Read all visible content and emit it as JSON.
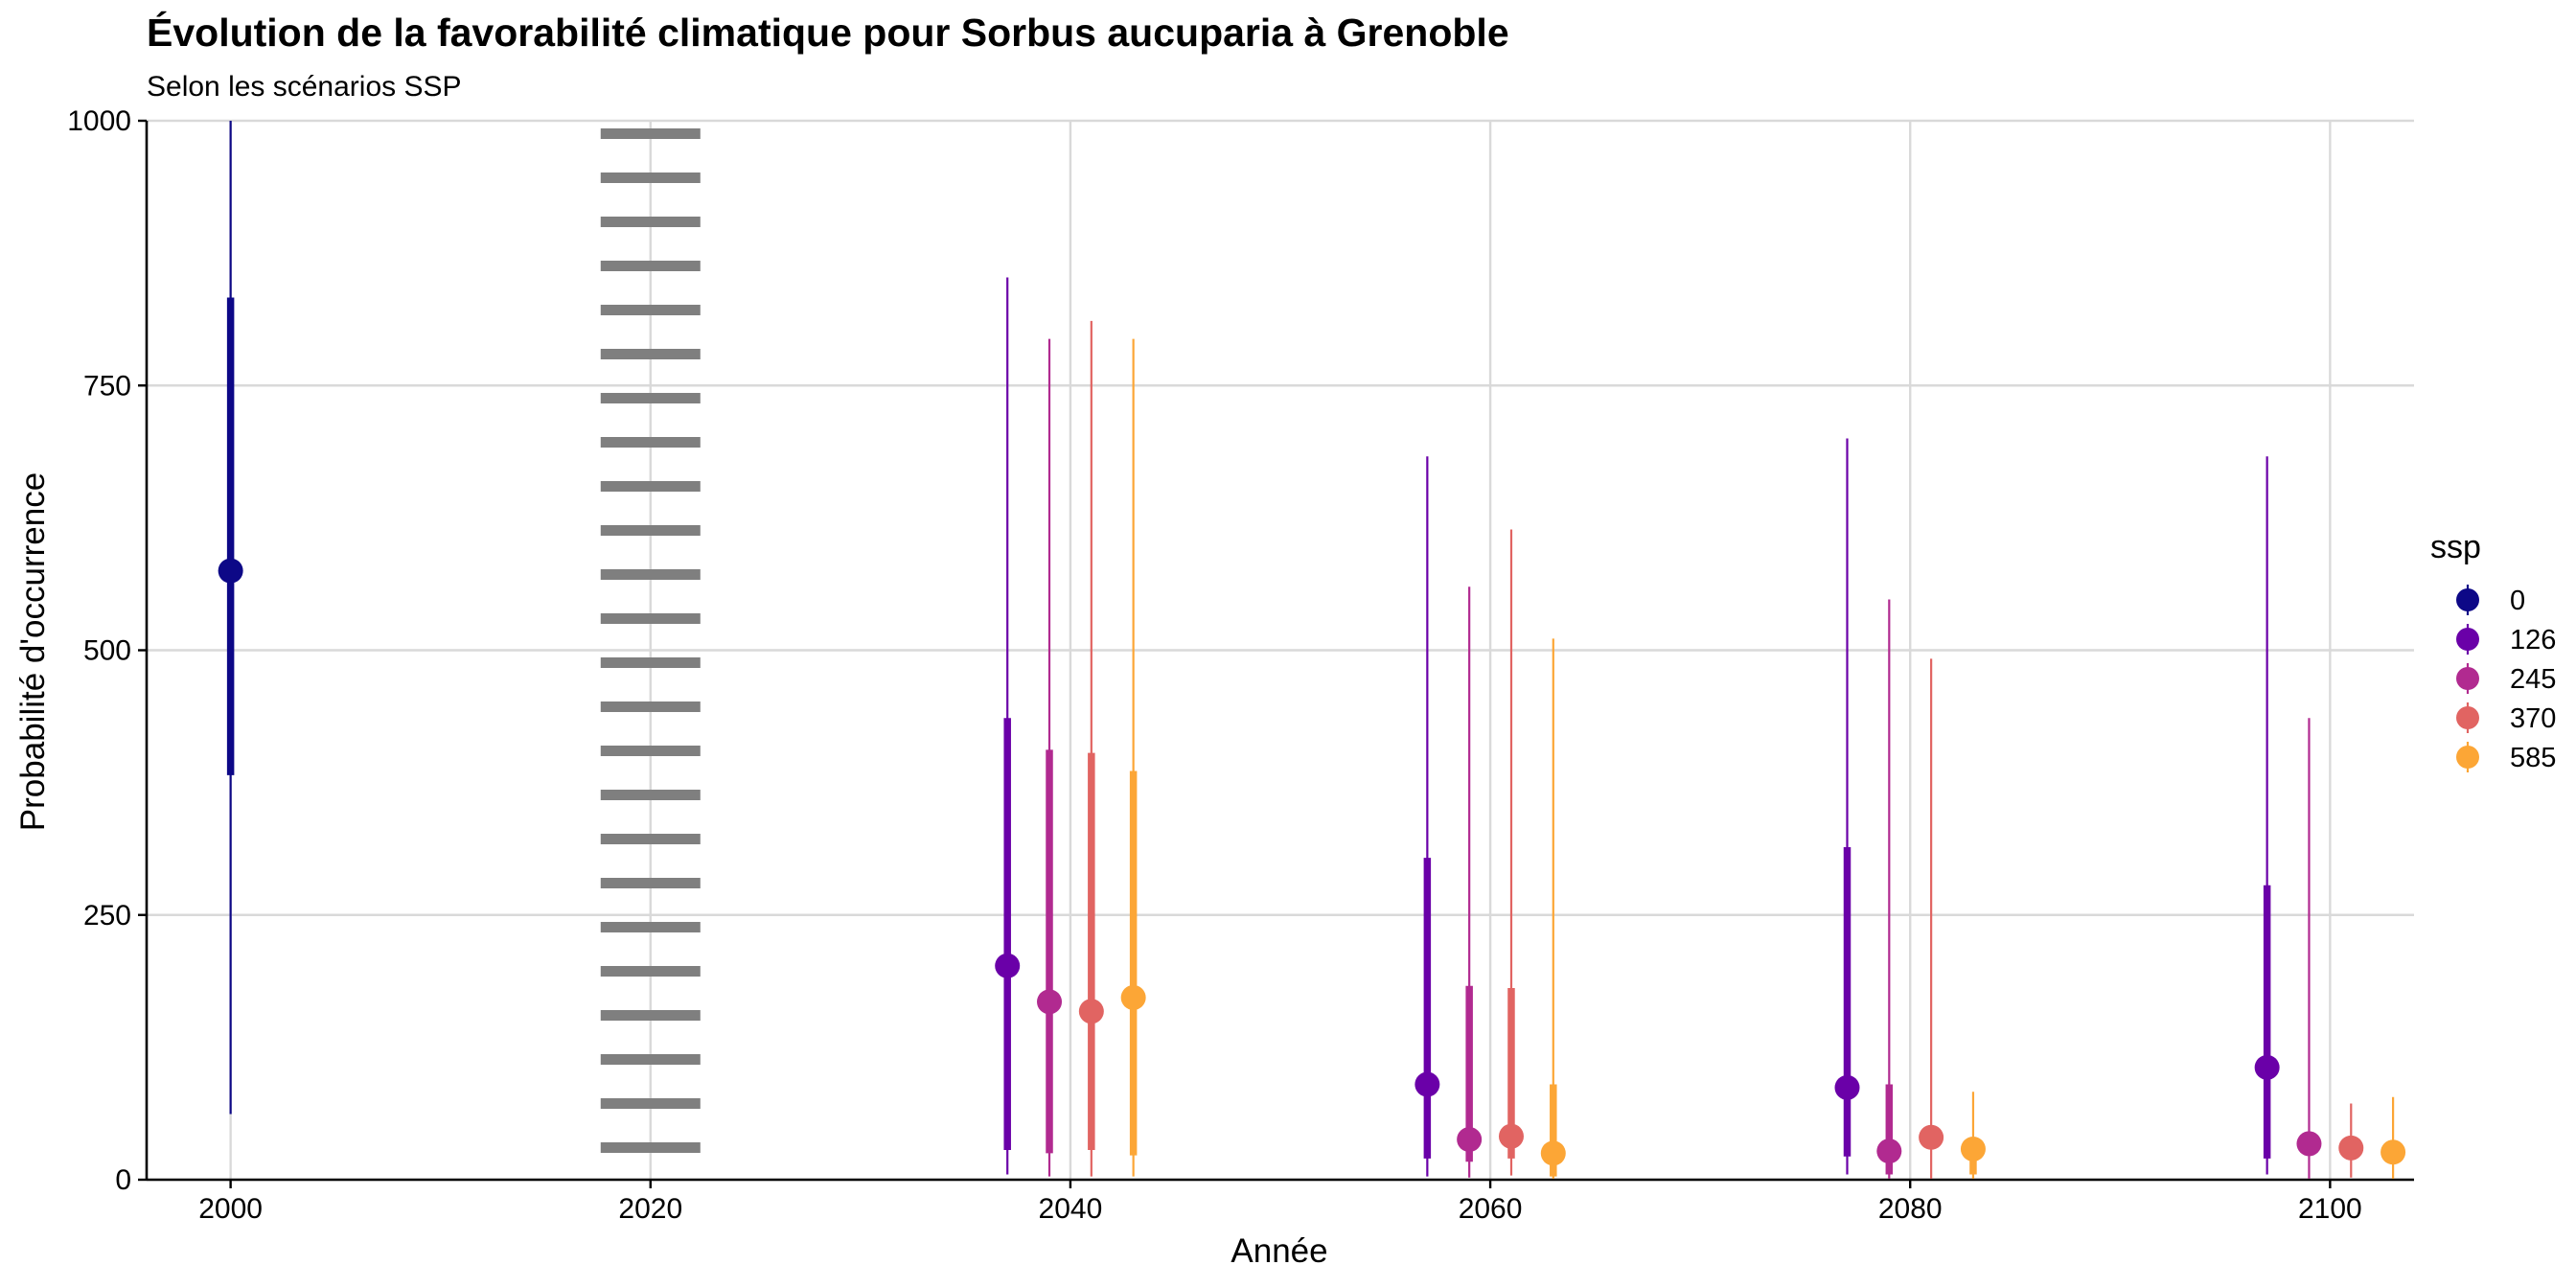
{
  "chart_data": {
    "type": "pointrange",
    "title": "Évolution de la favorabilité climatique pour Sorbus aucuparia à Grenoble",
    "subtitle": "Selon les scénarios SSP",
    "xlabel": "Année",
    "ylabel": "Probabilité d'occurrence",
    "xlim": [
      1996,
      2104
    ],
    "ylim": [
      0,
      1000
    ],
    "x_ticks": [
      2000,
      2020,
      2040,
      2060,
      2080,
      2100
    ],
    "y_ticks": [
      0,
      250,
      500,
      750,
      1000
    ],
    "grid": true,
    "legend": {
      "title": "ssp",
      "position": "right"
    },
    "reference_line": {
      "x": 2020,
      "style": "dotted",
      "color": "#7f7f7f"
    },
    "series": [
      {
        "name": "0",
        "color": "#0d0887",
        "points": [
          {
            "x": 2000,
            "y": 575,
            "outer": [
              62,
              1000
            ],
            "inner": [
              382,
              833
            ]
          }
        ]
      },
      {
        "name": "126",
        "color": "#6a00a8",
        "points": [
          {
            "x": 2037,
            "y": 202,
            "outer": [
              5,
              852
            ],
            "inner": [
              28,
              436
            ]
          },
          {
            "x": 2057,
            "y": 90,
            "outer": [
              3,
              683
            ],
            "inner": [
              20,
              304
            ]
          },
          {
            "x": 2077,
            "y": 87,
            "outer": [
              5,
              700
            ],
            "inner": [
              22,
              314
            ]
          },
          {
            "x": 2097,
            "y": 106,
            "outer": [
              5,
              683
            ],
            "inner": [
              20,
              278
            ]
          }
        ]
      },
      {
        "name": "245",
        "color": "#b12a90",
        "points": [
          {
            "x": 2039,
            "y": 168,
            "outer": [
              3,
              794
            ],
            "inner": [
              25,
              406
            ]
          },
          {
            "x": 2059,
            "y": 38,
            "outer": [
              2,
              560
            ],
            "inner": [
              17,
              183
            ]
          },
          {
            "x": 2079,
            "y": 27,
            "outer": [
              1,
              548
            ],
            "inner": [
              5,
              90
            ]
          },
          {
            "x": 2099,
            "y": 34,
            "outer": [
              1,
              436
            ],
            "inner": [
              25,
              42
            ]
          }
        ]
      },
      {
        "name": "370",
        "color": "#e16462",
        "points": [
          {
            "x": 2041,
            "y": 159,
            "outer": [
              3,
              811
            ],
            "inner": [
              28,
              403
            ]
          },
          {
            "x": 2061,
            "y": 41,
            "outer": [
              4,
              614
            ],
            "inner": [
              20,
              181
            ]
          },
          {
            "x": 2081,
            "y": 40,
            "outer": [
              1,
              492
            ],
            "inner": [
              30,
              46
            ]
          },
          {
            "x": 2101,
            "y": 30,
            "outer": [
              2,
              72
            ],
            "inner": [
              24,
              36
            ]
          }
        ]
      },
      {
        "name": "585",
        "color": "#fca636",
        "points": [
          {
            "x": 2043,
            "y": 172,
            "outer": [
              3,
              794
            ],
            "inner": [
              23,
              386
            ]
          },
          {
            "x": 2063,
            "y": 25,
            "outer": [
              1,
              511
            ],
            "inner": [
              3,
              90
            ]
          },
          {
            "x": 2083,
            "y": 29,
            "outer": [
              1,
              83
            ],
            "inner": [
              5,
              39
            ]
          },
          {
            "x": 2103,
            "y": 26,
            "outer": [
              1,
              78
            ],
            "inner": [
              20,
              34
            ]
          }
        ]
      }
    ]
  }
}
